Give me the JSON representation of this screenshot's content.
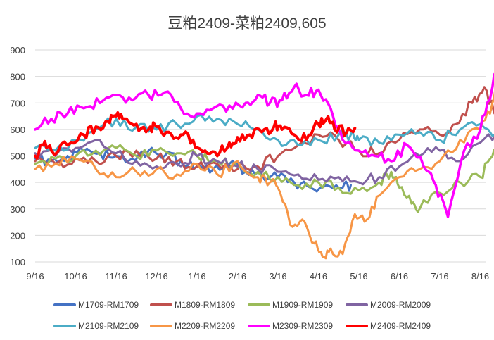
{
  "chart_data": {
    "type": "line",
    "title": "豆粕2409-菜粕2409,605",
    "xlabel": "",
    "ylabel": "",
    "x_ticks": [
      "9/16",
      "10/16",
      "11/16",
      "12/16",
      "1/16",
      "2/16",
      "3/16",
      "4/16",
      "5/16",
      "6/16",
      "7/16",
      "8/16"
    ],
    "y_ticks": [
      100,
      200,
      300,
      400,
      500,
      600,
      700,
      800,
      900
    ],
    "ylim": [
      100,
      900
    ],
    "xlim": [
      0,
      11.5
    ],
    "grid": true,
    "legend_position": "bottom",
    "series": [
      {
        "name": "M1709-RM1709",
        "color": "#4472c4",
        "width": 3,
        "x": [
          0,
          0.4,
          0.8,
          1.2,
          1.6,
          2,
          2.4,
          2.8,
          3.2,
          3.6,
          4,
          4.4,
          4.8,
          5.2,
          5.6,
          6,
          6.4,
          6.8,
          7.2,
          7.6,
          7.8
        ],
        "y": [
          490,
          480,
          500,
          520,
          510,
          500,
          490,
          520,
          500,
          480,
          460,
          450,
          470,
          440,
          430,
          420,
          400,
          380,
          390,
          380,
          390
        ]
      },
      {
        "name": "M1809-RM1809",
        "color": "#c0504d",
        "width": 3,
        "x": [
          0,
          0.5,
          1,
          1.5,
          2,
          2.5,
          3,
          3.5,
          4,
          4.5,
          5,
          5.5,
          6,
          6.5,
          7,
          7.5,
          8,
          8.5,
          9,
          9.5,
          10,
          10.4,
          10.8,
          11.1,
          11.4
        ],
        "y": [
          480,
          470,
          490,
          480,
          500,
          520,
          490,
          480,
          460,
          470,
          450,
          460,
          500,
          540,
          580,
          560,
          520,
          510,
          560,
          600,
          580,
          620,
          700,
          760,
          650
        ]
      },
      {
        "name": "M1909-RM1909",
        "color": "#9bbb59",
        "width": 3,
        "x": [
          0,
          0.5,
          1,
          1.5,
          2,
          2.5,
          3,
          3.5,
          4,
          4.5,
          5,
          5.5,
          6,
          6.5,
          7,
          7.5,
          8,
          8.5,
          8.8,
          9,
          9.3,
          9.5,
          10,
          10.5,
          11,
          11.3,
          11.5
        ],
        "y": [
          470,
          490,
          500,
          520,
          530,
          500,
          520,
          510,
          500,
          480,
          460,
          440,
          420,
          390,
          400,
          380,
          370,
          400,
          440,
          380,
          320,
          300,
          360,
          400,
          420,
          500,
          560
        ]
      },
      {
        "name": "M2009-RM2009",
        "color": "#8064a2",
        "width": 3,
        "x": [
          0,
          0.5,
          1,
          1.5,
          2,
          2.5,
          3,
          3.5,
          4,
          4.5,
          5,
          5.5,
          6,
          6.5,
          7,
          7.5,
          8,
          8.5,
          9,
          9.5,
          10,
          10.5,
          11,
          11.5
        ],
        "y": [
          510,
          500,
          530,
          560,
          510,
          480,
          460,
          470,
          500,
          480,
          460,
          450,
          440,
          430,
          410,
          420,
          400,
          420,
          460,
          500,
          520,
          480,
          550,
          600
        ]
      },
      {
        "name": "M2109-RM2109",
        "color": "#4bacc6",
        "width": 3,
        "x": [
          0,
          0.5,
          1,
          1.5,
          2,
          2.5,
          3,
          3.5,
          4,
          4.5,
          5,
          5.5,
          6,
          6.5,
          7,
          7.5,
          7.8,
          8,
          8.5,
          9,
          9.5,
          10,
          10.5,
          11,
          11.5
        ],
        "y": [
          530,
          520,
          560,
          600,
          640,
          610,
          600,
          620,
          650,
          640,
          620,
          600,
          560,
          540,
          560,
          580,
          580,
          560,
          550,
          580,
          590,
          560,
          600,
          620,
          570
        ]
      },
      {
        "name": "M2209-RM2209",
        "color": "#f79646",
        "width": 3,
        "x": [
          0,
          0.5,
          1,
          1.5,
          2,
          2.5,
          3,
          3.5,
          4,
          4.5,
          5,
          5.5,
          5.8,
          6,
          6.3,
          6.6,
          6.9,
          7.1,
          7.3,
          7.6,
          7.9,
          8.2,
          8.5,
          9,
          9.5,
          10,
          10.5,
          11,
          11.3,
          11.5
        ],
        "y": [
          450,
          470,
          490,
          450,
          420,
          440,
          450,
          430,
          470,
          430,
          480,
          420,
          400,
          380,
          240,
          260,
          170,
          120,
          150,
          130,
          280,
          260,
          350,
          420,
          450,
          480,
          560,
          600,
          700,
          860
        ]
      },
      {
        "name": "M2309-RM2309",
        "color": "#ff00ff",
        "width": 3.5,
        "x": [
          0,
          0.4,
          0.8,
          1.2,
          1.6,
          2,
          2.4,
          2.8,
          3.2,
          3.6,
          4,
          4.4,
          4.8,
          5.2,
          5.5,
          5.8,
          6.1,
          6.4,
          6.7,
          7,
          7.3,
          7.6,
          8,
          8.4,
          8.8,
          9.2,
          9.6,
          9.9,
          10.2,
          10.6,
          11,
          11.3,
          11.5
        ],
        "y": [
          600,
          640,
          660,
          680,
          700,
          730,
          710,
          730,
          740,
          680,
          660,
          680,
          690,
          700,
          730,
          700,
          710,
          760,
          730,
          750,
          680,
          560,
          520,
          500,
          480,
          540,
          460,
          390,
          270,
          520,
          600,
          760,
          880
        ]
      },
      {
        "name": "M2409-RM2409",
        "color": "#ff0000",
        "width": 4,
        "x": [
          0,
          0.2,
          0.4,
          0.8,
          1.2,
          1.5,
          1.8,
          2,
          2.2,
          2.5,
          2.8,
          3,
          3.3,
          3.6,
          3.9,
          4.2,
          4.5,
          4.8,
          5,
          5.3,
          5.6,
          5.9,
          6.1,
          6.4,
          6.7,
          7,
          7.2,
          7.4,
          7.7,
          7.9
        ],
        "y": [
          500,
          540,
          520,
          540,
          580,
          610,
          630,
          650,
          640,
          620,
          600,
          610,
          590,
          580,
          560,
          520,
          500,
          550,
          570,
          580,
          590,
          610,
          600,
          580,
          560,
          620,
          640,
          600,
          590,
          605
        ]
      }
    ]
  }
}
